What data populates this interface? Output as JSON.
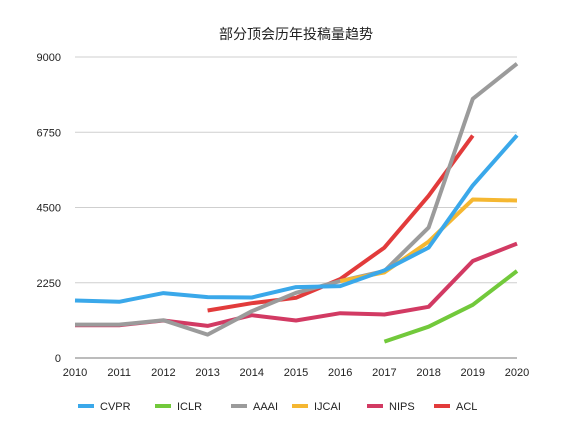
{
  "chart_data": {
    "type": "line",
    "title": "部分顶会历年投稿量趋势",
    "xlabel": "",
    "ylabel": "",
    "x": [
      "2010",
      "2011",
      "2012",
      "2013",
      "2014",
      "2015",
      "2016",
      "2017",
      "2018",
      "2019",
      "2020"
    ],
    "yticks": [
      "0",
      "2250",
      "4500",
      "6750",
      "9000"
    ],
    "ylim": [
      0,
      9000
    ],
    "grid": "horizontal",
    "legend_position": "bottom",
    "series": [
      {
        "name": "CVPR",
        "color": "#3aa8ea",
        "values": [
          1720,
          1680,
          1940,
          1820,
          1810,
          2120,
          2150,
          2620,
          3300,
          5160,
          6660
        ]
      },
      {
        "name": "ICLR",
        "color": "#72c93b",
        "values": [
          null,
          null,
          null,
          null,
          null,
          null,
          null,
          490,
          935,
          1590,
          2600
        ]
      },
      {
        "name": "AAAI",
        "color": "#9b9b9b",
        "values": [
          1000,
          1000,
          1130,
          700,
          1400,
          1950,
          2300,
          2600,
          3900,
          7750,
          8800
        ]
      },
      {
        "name": "IJCAI",
        "color": "#f5b731",
        "values": [
          null,
          null,
          null,
          null,
          null,
          null,
          2300,
          2560,
          3480,
          4740,
          4710
        ]
      },
      {
        "name": "NIPS",
        "color": "#d23a63",
        "values": [
          980,
          980,
          1120,
          960,
          1280,
          1120,
          1340,
          1300,
          1530,
          2900,
          3420
        ]
      },
      {
        "name": "ACL",
        "color": "#e23b3b",
        "values": [
          null,
          null,
          null,
          1420,
          1640,
          1800,
          2360,
          3300,
          4850,
          6650,
          null
        ]
      }
    ],
    "draw_order": [
      "ACL",
      "NIPS",
      "AAAI",
      "IJCAI",
      "ICLR",
      "CVPR"
    ]
  }
}
